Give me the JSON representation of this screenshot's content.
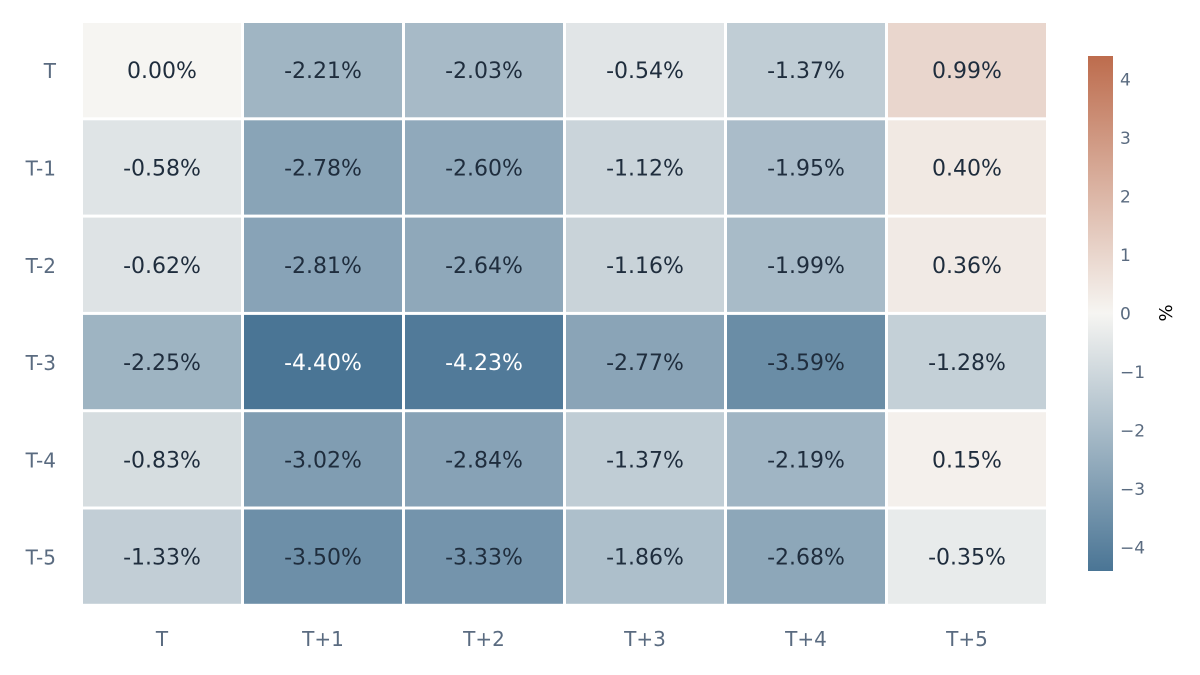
{
  "chart_data": {
    "type": "heatmap",
    "title": "",
    "xlabel": "",
    "ylabel": "",
    "x_categories": [
      "T",
      "T+1",
      "T+2",
      "T+3",
      "T+4",
      "T+5"
    ],
    "y_categories": [
      "T",
      "T-1",
      "T-2",
      "T-3",
      "T-4",
      "T-5"
    ],
    "values": [
      [
        0.0,
        -2.21,
        -2.03,
        -0.54,
        -1.37,
        0.99
      ],
      [
        -0.58,
        -2.78,
        -2.6,
        -1.12,
        -1.95,
        0.4
      ],
      [
        -0.62,
        -2.81,
        -2.64,
        -1.16,
        -1.99,
        0.36
      ],
      [
        -2.25,
        -4.4,
        -4.23,
        -2.77,
        -3.59,
        -1.28
      ],
      [
        -0.83,
        -3.02,
        -2.84,
        -1.37,
        -2.19,
        0.15
      ],
      [
        -1.33,
        -3.5,
        -3.33,
        -1.86,
        -2.68,
        -0.35
      ]
    ],
    "value_labels": [
      [
        "0.00%",
        "-2.21%",
        "-2.03%",
        "-0.54%",
        "-1.37%",
        "0.99%"
      ],
      [
        "-0.58%",
        "-2.78%",
        "-2.60%",
        "-1.12%",
        "-1.95%",
        "0.40%"
      ],
      [
        "-0.62%",
        "-2.81%",
        "-2.64%",
        "-1.16%",
        "-1.99%",
        "0.36%"
      ],
      [
        "-2.25%",
        "-4.40%",
        "-4.23%",
        "-2.77%",
        "-3.59%",
        "-1.28%"
      ],
      [
        "-0.83%",
        "-3.02%",
        "-2.84%",
        "-1.37%",
        "-2.19%",
        "0.15%"
      ],
      [
        "-1.33%",
        "-3.50%",
        "-3.33%",
        "-1.86%",
        "-2.68%",
        "-0.35%"
      ]
    ],
    "colorbar": {
      "title": "%",
      "range": [
        -4.4,
        4.4
      ],
      "ticks": [
        4,
        3,
        2,
        1,
        0,
        -1,
        -2,
        -3,
        -4
      ],
      "tick_labels": [
        "4",
        "3",
        "2",
        "1",
        "0",
        "−1",
        "−2",
        "−3",
        "−4"
      ]
    },
    "colorscale": {
      "negative": "#4a7595",
      "neutral": "#f6f5f2",
      "positive": "#bd6c4d"
    },
    "text_colors": {
      "dark": "#1f2d3d",
      "light": "#ffffff"
    },
    "tick_color": "#5a6b80",
    "grid": false,
    "legend": "right"
  }
}
